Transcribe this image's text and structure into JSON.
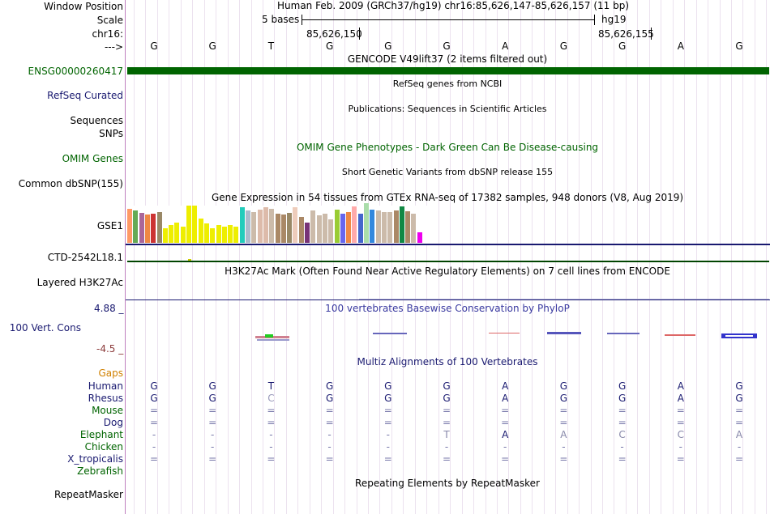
{
  "colors": {
    "gencode_green": "#006400",
    "navy": "#191970",
    "omim_green": "#006400",
    "orange": "#d08000",
    "maroon": "#8b3a3a",
    "conservation_blue": "#3a3aa0",
    "grid": "#e0d0e8",
    "border": "#c080c0"
  },
  "position": {
    "window_label": "Window Position",
    "scale_label": "Scale",
    "chrom_label": "chr16:",
    "arrow_label": "--->",
    "assembly_text": "Human Feb. 2009 (GRCh37/hg19)   chr16:85,626,147-85,626,157 (11 bp)",
    "scale_text": "5 bases",
    "db_text": "hg19",
    "coord1": "85,626,150",
    "coord2": "85,626,155",
    "bases": [
      "G",
      "G",
      "T",
      "G",
      "G",
      "G",
      "A",
      "G",
      "G",
      "A",
      "G"
    ]
  },
  "tracks": {
    "gencode": {
      "title": "GENCODE V49lift37 (2 items filtered out)",
      "label": "ENSG00000260417"
    },
    "refseq": {
      "title": "RefSeq genes from NCBI",
      "label": "RefSeq Curated"
    },
    "publications": {
      "title": "Publications: Sequences in Scientific Articles",
      "label": "Sequences"
    },
    "snps_label": "SNPs",
    "omim": {
      "title": "OMIM Gene Phenotypes - Dark Green Can Be Disease-causing",
      "label": "OMIM Genes"
    },
    "dbsnp": {
      "title": "Short Genetic Variants from dbSNP release 155",
      "label": "Common dbSNP(155)"
    },
    "gtex": {
      "title": "Gene Expression in 54 tissues from GTEx RNA-seq of 17382 samples, 948 donors (V8, Aug 2019)",
      "label": "GSE1"
    },
    "ctd": {
      "label": "CTD-2542L18.1"
    },
    "h3k27ac": {
      "title": "H3K27Ac Mark (Often Found Near Active Regulatory Elements) on 7 cell lines from ENCODE",
      "label": "Layered H3K27Ac"
    },
    "phylop": {
      "title": "100 vertebrates Basewise Conservation by PhyloP",
      "label": "100 Vert. Cons",
      "max": "4.88 _",
      "min": "-4.5 _"
    },
    "multiz": {
      "title": "Multiz Alignments of 100 Vertebrates",
      "gaps_label": "Gaps"
    },
    "repeatmasker": {
      "title": "Repeating Elements by RepeatMasker",
      "label": "RepeatMasker"
    }
  },
  "gtex_bars": [
    {
      "h": 42,
      "c": "#ff9966"
    },
    {
      "h": 40,
      "c": "#66aa55"
    },
    {
      "h": 37,
      "c": "#aa6699"
    },
    {
      "h": 35,
      "c": "#ee8844"
    },
    {
      "h": 36,
      "c": "#cc3333"
    },
    {
      "h": 38,
      "c": "#998866"
    },
    {
      "h": 18,
      "c": "#eeee00"
    },
    {
      "h": 22,
      "c": "#eeee00"
    },
    {
      "h": 25,
      "c": "#eeee00"
    },
    {
      "h": 20,
      "c": "#eeee00"
    },
    {
      "h": 46,
      "c": "#eeee00"
    },
    {
      "h": 46,
      "c": "#eeee00"
    },
    {
      "h": 30,
      "c": "#eeee00"
    },
    {
      "h": 24,
      "c": "#eeee00"
    },
    {
      "h": 18,
      "c": "#eeee00"
    },
    {
      "h": 22,
      "c": "#eeee00"
    },
    {
      "h": 20,
      "c": "#eeee00"
    },
    {
      "h": 22,
      "c": "#eeee00"
    },
    {
      "h": 20,
      "c": "#eeee00"
    },
    {
      "h": 44,
      "c": "#22ccbb"
    },
    {
      "h": 40,
      "c": "#aabbcc"
    },
    {
      "h": 38,
      "c": "#ccbbaa"
    },
    {
      "h": 41,
      "c": "#ddbbaa"
    },
    {
      "h": 44,
      "c": "#ddbbaa"
    },
    {
      "h": 42,
      "c": "#ccbbaa"
    },
    {
      "h": 36,
      "c": "#aa8866"
    },
    {
      "h": 35,
      "c": "#aa8866"
    },
    {
      "h": 37,
      "c": "#998866"
    },
    {
      "h": 44,
      "c": "#eeccbb"
    },
    {
      "h": 32,
      "c": "#aa8866"
    },
    {
      "h": 25,
      "c": "#773377"
    },
    {
      "h": 40,
      "c": "#ccbbaa"
    },
    {
      "h": 34,
      "c": "#ccbbaa"
    },
    {
      "h": 36,
      "c": "#ccbbaa"
    },
    {
      "h": 29,
      "c": "#ccbbaa"
    },
    {
      "h": 41,
      "c": "#99cc33"
    },
    {
      "h": 36,
      "c": "#6666ee"
    },
    {
      "h": 38,
      "c": "#ee8844"
    },
    {
      "h": 45,
      "c": "#ffaaaa"
    },
    {
      "h": 36,
      "c": "#4466cc"
    },
    {
      "h": 49,
      "c": "#aaddaa"
    },
    {
      "h": 41,
      "c": "#3388dd"
    },
    {
      "h": 40,
      "c": "#ccbbaa"
    },
    {
      "h": 38,
      "c": "#ccbbaa"
    },
    {
      "h": 38,
      "c": "#ccbbaa"
    },
    {
      "h": 40,
      "c": "#aa8866"
    },
    {
      "h": 45,
      "c": "#118844"
    },
    {
      "h": 39,
      "c": "#aa8866"
    },
    {
      "h": 36,
      "c": "#ccbbaa"
    },
    {
      "h": 13,
      "c": "#ee00ee"
    }
  ],
  "species": [
    {
      "name": "Human",
      "kind": "human",
      "row": [
        "G",
        "G",
        "T",
        "G",
        "G",
        "G",
        "A",
        "G",
        "G",
        "A",
        "G"
      ]
    },
    {
      "name": "Rhesus",
      "kind": "human",
      "row": [
        "G",
        "G",
        "C",
        "G",
        "G",
        "G",
        "A",
        "G",
        "G",
        "A",
        "G"
      ]
    },
    {
      "name": "Mouse",
      "kind": "green",
      "row": [
        "=",
        "=",
        "=",
        "=",
        "=",
        "=",
        "=",
        "=",
        "=",
        "=",
        "="
      ]
    },
    {
      "name": "Dog",
      "kind": "navy",
      "row": [
        "=",
        "=",
        "=",
        "=",
        "=",
        "=",
        "=",
        "=",
        "=",
        "=",
        "="
      ]
    },
    {
      "name": "Elephant",
      "kind": "green",
      "row": [
        "-",
        "-",
        "-",
        "-",
        "-",
        "T",
        "A",
        "A",
        "C",
        "C",
        "A"
      ]
    },
    {
      "name": "Chicken",
      "kind": "green",
      "row": [
        "-",
        "-",
        "-",
        "-",
        "-",
        "-",
        "-",
        "-",
        "-",
        "-",
        "-"
      ]
    },
    {
      "name": "X_tropicalis",
      "kind": "navy",
      "row": [
        "=",
        "=",
        "=",
        "=",
        "=",
        "=",
        "=",
        "=",
        "=",
        "=",
        "="
      ]
    },
    {
      "name": "Zebrafish",
      "kind": "green",
      "row": [
        "",
        "",
        "",
        "",
        "",
        "",
        "",
        "",
        "",
        "",
        ""
      ]
    }
  ]
}
